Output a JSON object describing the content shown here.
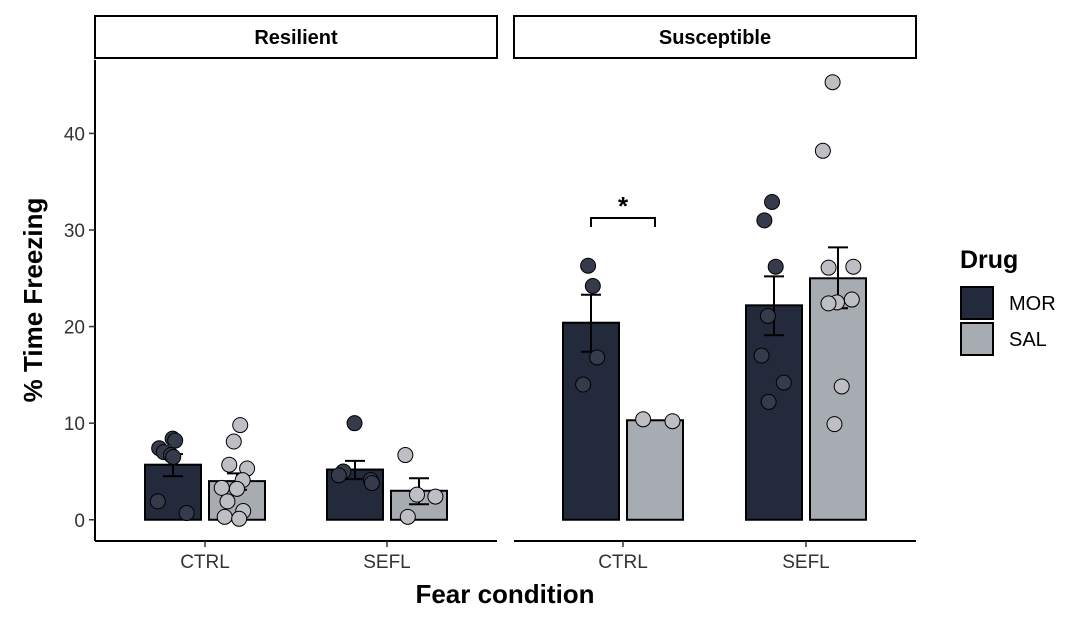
{
  "chart_data": {
    "type": "bar",
    "facets": [
      {
        "label": "Resilient",
        "groups": [
          {
            "condition": "CTRL",
            "bars": [
              {
                "drug": "MOR",
                "mean": 5.7,
                "se_low": 4.5,
                "se_high": 6.8,
                "points": [
                  8.4,
                  8.2,
                  7.4,
                  7.0,
                  6.7,
                  6.5,
                  1.9,
                  0.7
                ]
              },
              {
                "drug": "SAL",
                "mean": 4.0,
                "se_low": 3.1,
                "se_high": 4.8,
                "points": [
                  9.8,
                  8.1,
                  5.7,
                  5.3,
                  4.1,
                  3.3,
                  3.2,
                  1.9,
                  0.9,
                  0.3,
                  0.1
                ]
              }
            ]
          },
          {
            "condition": "SEFL",
            "bars": [
              {
                "drug": "MOR",
                "mean": 5.2,
                "se_low": 4.2,
                "se_high": 6.1,
                "points": [
                  10.0,
                  5.0,
                  4.6,
                  4.1,
                  3.8
                ]
              },
              {
                "drug": "SAL",
                "mean": 3.0,
                "se_low": 1.6,
                "se_high": 4.3,
                "points": [
                  6.7,
                  2.6,
                  2.4,
                  0.3
                ]
              }
            ]
          }
        ]
      },
      {
        "label": "Susceptible",
        "groups": [
          {
            "condition": "CTRL",
            "bars": [
              {
                "drug": "MOR",
                "mean": 20.4,
                "se_low": 17.4,
                "se_high": 23.3,
                "points": [
                  26.3,
                  24.2,
                  16.8,
                  14.0
                ]
              },
              {
                "drug": "SAL",
                "mean": 10.3,
                "se_low": 10.3,
                "se_high": 10.3,
                "points": [
                  10.4,
                  10.2
                ]
              }
            ]
          },
          {
            "condition": "SEFL",
            "bars": [
              {
                "drug": "MOR",
                "mean": 22.2,
                "se_low": 19.1,
                "se_high": 25.2,
                "points": [
                  32.9,
                  31.0,
                  26.2,
                  21.1,
                  17.0,
                  14.2,
                  12.2
                ]
              },
              {
                "drug": "SAL",
                "mean": 25.0,
                "se_low": 21.9,
                "se_high": 28.2,
                "points": [
                  45.3,
                  38.2,
                  26.2,
                  26.1,
                  22.8,
                  22.5,
                  22.4,
                  13.8,
                  9.9
                ]
              }
            ]
          }
        ]
      }
    ],
    "significance": [
      {
        "facet": "Susceptible",
        "condition": "CTRL",
        "label": "*"
      }
    ],
    "xlabel": "Fear condition",
    "ylabel": "% Time Freezing",
    "ylim": [
      -2.2,
      47.6
    ],
    "yticks": [
      0,
      10,
      20,
      30,
      40
    ],
    "legend": {
      "title": "Drug",
      "placement": "right",
      "entries": [
        {
          "label": "MOR",
          "color": "#222a3c"
        },
        {
          "label": "SAL",
          "color": "#a7abb2"
        }
      ]
    },
    "colors": {
      "MOR": "#222a3c",
      "SAL": "#a7abb2",
      "point_MOR": "#353b4b",
      "point_SAL": "#bdbfc4"
    }
  }
}
